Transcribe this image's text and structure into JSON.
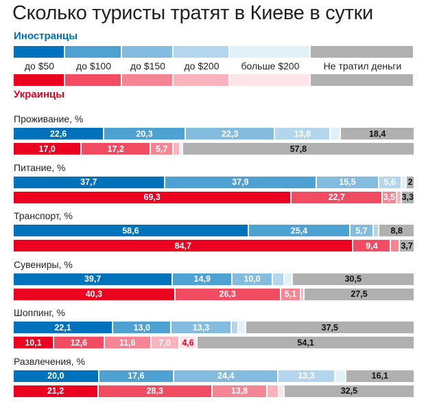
{
  "title": "Сколько туристы тратят в Киеве в сутки",
  "colors": {
    "foreign": [
      "#0072bc",
      "#4ea1d3",
      "#84bce0",
      "#b3d6ec",
      "#e2f0f8",
      "#b0b0b0"
    ],
    "ukrainian": [
      "#ec0020",
      "#f24c63",
      "#f68593",
      "#f9b3bd",
      "#fde4e8",
      "#b0b0b0"
    ],
    "foreign_title": "#0072bc",
    "ukrainian_title": "#e8001f"
  },
  "chart_data": {
    "type": "bar",
    "stacked": true,
    "orientation": "horizontal",
    "title": "Сколько туристы тратят в Киеве в сутки",
    "unit": "%",
    "groups": [
      "Иностранцы",
      "Украинцы"
    ],
    "legend": [
      "до $50",
      "до $100",
      "до $150",
      "до $200",
      "больше $200",
      "Не тратил деньги"
    ],
    "legend_placement": "top",
    "categories": [
      {
        "name": "Проживание, %",
        "foreign": {
          "values": [
            22.6,
            20.3,
            22.3,
            13.8,
            2.6,
            18.4
          ],
          "labels": [
            "22,6",
            "20,3",
            "22,3",
            "13,8",
            "",
            "18,4"
          ]
        },
        "ukrainian": {
          "values": [
            17.0,
            17.2,
            5.7,
            1.6,
            0.7,
            57.8
          ],
          "labels": [
            "17,0",
            "17,2",
            "5,7",
            "",
            "",
            "57,8"
          ]
        }
      },
      {
        "name": "Питание, %",
        "foreign": {
          "values": [
            37.7,
            37.9,
            15.5,
            5.6,
            1.3,
            2
          ],
          "labels": [
            "37,7",
            "37,9",
            "15,5",
            "5,6",
            "",
            "2"
          ]
        },
        "ukrainian": {
          "values": [
            69.3,
            22.7,
            3.5,
            1.2,
            0,
            3.3
          ],
          "labels": [
            "69,3",
            "22,7",
            "3,5",
            "",
            "",
            "3,3"
          ]
        }
      },
      {
        "name": "Транспорт, %",
        "foreign": {
          "values": [
            58.6,
            25.4,
            5.7,
            1.5,
            0,
            8.8
          ],
          "labels": [
            "58,6",
            "25,4",
            "5,7",
            "",
            "",
            "8,8"
          ]
        },
        "ukrainian": {
          "values": [
            84.7,
            9.4,
            2.2,
            0,
            0,
            3.7
          ],
          "labels": [
            "84,7",
            "9,4",
            "",
            "",
            "",
            "3,7"
          ]
        }
      },
      {
        "name": "Сувениры, %",
        "foreign": {
          "values": [
            39.7,
            14.9,
            10.0,
            2.9,
            2.0,
            30.5
          ],
          "labels": [
            "39,7",
            "14,9",
            "10,0",
            "",
            "",
            "30,5"
          ]
        },
        "ukrainian": {
          "values": [
            40.3,
            26.3,
            5.1,
            0.8,
            0,
            27.5
          ],
          "labels": [
            "40,3",
            "26,3",
            "5,1",
            "",
            "",
            "27,5"
          ]
        }
      },
      {
        "name": "Шоппинг, %",
        "foreign": {
          "values": [
            22.1,
            13.0,
            13.3,
            1.5,
            1.7,
            37.5
          ],
          "labels": [
            "22,1",
            "13,0",
            "13,3",
            "",
            "",
            "37,5"
          ]
        },
        "ukrainian": {
          "values": [
            10.1,
            12.6,
            11.6,
            7.0,
            4.6,
            54.1
          ],
          "labels": [
            "10,1",
            "12,6",
            "11,6",
            "7,0",
            "4,6",
            "54,1"
          ]
        }
      },
      {
        "name": "Развлечения, %",
        "foreign": {
          "values": [
            20.0,
            17.6,
            24.4,
            13.3,
            2.5,
            16.1
          ],
          "labels": [
            "20,0",
            "17,6",
            "24,4",
            "13,3",
            "",
            "16,1"
          ]
        },
        "ukrainian": {
          "values": [
            21.2,
            28.3,
            13.8,
            2.8,
            1.4,
            32.5
          ],
          "labels": [
            "21,2",
            "28,3",
            "13,8",
            "",
            "",
            "32,5"
          ]
        }
      }
    ]
  }
}
